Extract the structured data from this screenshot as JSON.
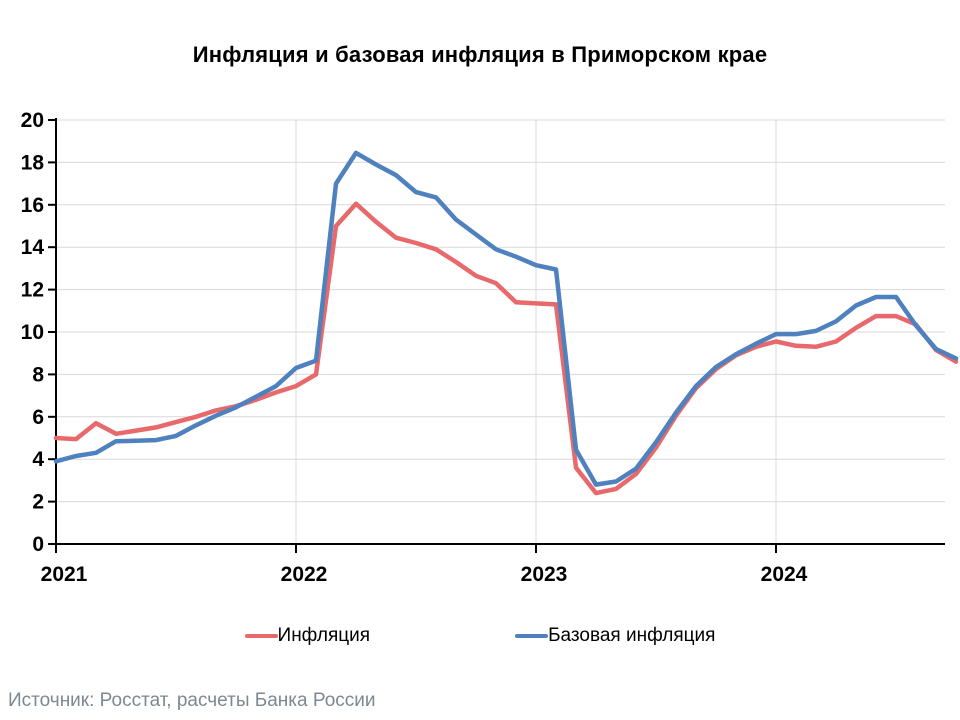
{
  "title": "Инфляция и базовая инфляция в Приморском крае",
  "source": "Источник: Росстат, расчеты Банка России",
  "legend": {
    "items": [
      {
        "label": "Инфляция",
        "color": "#E8696B"
      },
      {
        "label": "Базовая инфляция",
        "color": "#4E81BD"
      }
    ]
  },
  "chart_data": {
    "type": "line",
    "title": "Инфляция и базовая инфляция в Приморском крае",
    "x_frequency": "monthly",
    "x_start": "2021-01",
    "x_end": "2024-10",
    "x_tick_labels": [
      "2021",
      "2022",
      "2023",
      "2024"
    ],
    "x_tick_month_indices": [
      0,
      12,
      24,
      36
    ],
    "ylim": [
      0,
      20
    ],
    "y_tick_step": 2,
    "grid": true,
    "legend_position": "bottom",
    "units": "% year-on-year",
    "series": [
      {
        "name": "Инфляция",
        "color": "#E8696B",
        "values": [
          5.0,
          4.95,
          5.7,
          5.2,
          5.35,
          5.5,
          5.75,
          6.0,
          6.3,
          6.5,
          6.8,
          7.15,
          7.45,
          8.0,
          15.0,
          16.05,
          15.2,
          14.45,
          14.2,
          13.9,
          13.3,
          12.65,
          12.3,
          11.4,
          11.35,
          11.3,
          3.6,
          2.4,
          2.6,
          3.3,
          4.55,
          6.05,
          7.35,
          8.25,
          8.9,
          9.3,
          9.55,
          9.35,
          9.3,
          9.55,
          10.2,
          10.75,
          10.75,
          10.35,
          9.15,
          8.6
        ]
      },
      {
        "name": "Базовая инфляция",
        "color": "#4E81BD",
        "values": [
          3.9,
          4.15,
          4.3,
          4.85,
          4.87,
          4.9,
          5.1,
          5.6,
          6.05,
          6.45,
          6.95,
          7.45,
          8.3,
          8.65,
          17.0,
          18.45,
          17.9,
          17.4,
          16.6,
          16.35,
          15.3,
          14.6,
          13.9,
          13.55,
          13.15,
          12.95,
          4.45,
          2.8,
          2.95,
          3.55,
          4.8,
          6.2,
          7.45,
          8.35,
          8.95,
          9.45,
          9.9,
          9.9,
          10.05,
          10.5,
          11.25,
          11.65,
          11.65,
          10.3,
          9.2,
          8.75
        ]
      }
    ]
  },
  "colors": {
    "grid": "#D9D9D9",
    "axis": "#000000",
    "tick_label": "#000000",
    "source_text": "#7D8893",
    "background": "#FFFFFF"
  }
}
